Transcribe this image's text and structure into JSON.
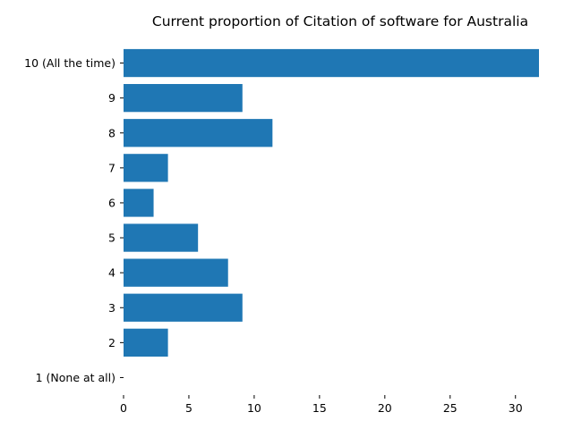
{
  "chart_data": {
    "type": "bar",
    "orientation": "horizontal",
    "title": "Current proportion of Citation of software for Australia",
    "xlabel": "",
    "ylabel": "",
    "categories": [
      "1 (None at all)",
      "2",
      "3",
      "4",
      "5",
      "6",
      "7",
      "8",
      "9",
      "10 (All the time)"
    ],
    "values": [
      0,
      3.4,
      9.1,
      8.0,
      5.7,
      2.3,
      3.4,
      11.4,
      9.1,
      31.8
    ],
    "xlim": [
      0,
      31.8
    ],
    "xticks": [
      0,
      5,
      10,
      15,
      20,
      25,
      30
    ],
    "grid": false,
    "bar_color": "#1f77b4"
  }
}
